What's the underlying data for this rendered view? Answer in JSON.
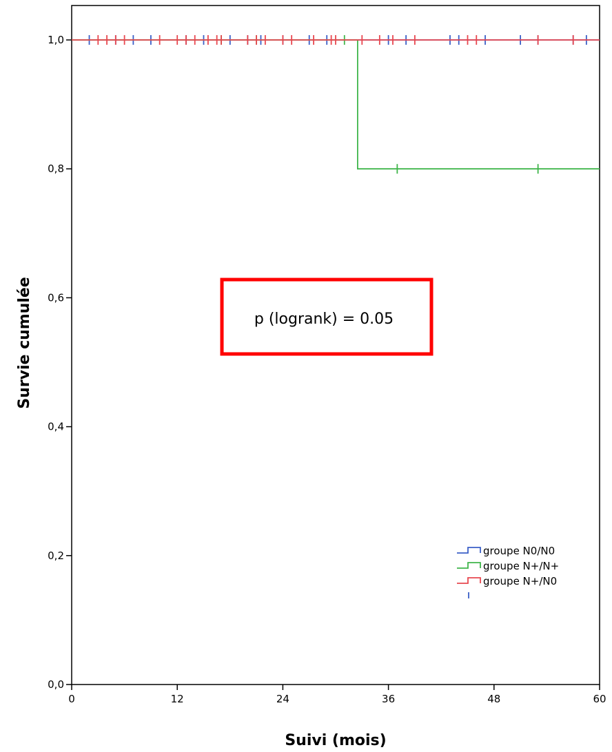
{
  "chart_data": {
    "type": "line",
    "step": true,
    "xlabel": "Suivi (mois)",
    "ylabel": "Survie cumulée",
    "xlim": [
      0,
      60
    ],
    "ylim": [
      0,
      1
    ],
    "x_ticks": [
      0,
      12,
      24,
      36,
      48,
      60
    ],
    "x_tick_labels": [
      "0",
      "12",
      "24",
      "36",
      "48",
      "60"
    ],
    "y_ticks": [
      0,
      0.2,
      0.4,
      0.6,
      0.8,
      1.0
    ],
    "y_tick_labels": [
      "0,0",
      "0,2",
      "0,4",
      "0,6",
      "0,8",
      "1,0"
    ],
    "grid": false,
    "legend_position": "bottom-right",
    "annotation": "p (logrank) = 0.05",
    "annotation_color": "#ff0000",
    "series": [
      {
        "name": "groupe N0/N0",
        "color": "#3b5fc7",
        "steps": [
          [
            0,
            1.0
          ],
          [
            60,
            1.0
          ]
        ],
        "censored": [
          2,
          5,
          7,
          9,
          13,
          15,
          18,
          20,
          21.5,
          24,
          27,
          29,
          36,
          38,
          43,
          44,
          47,
          51,
          53,
          57,
          58.5
        ]
      },
      {
        "name": "groupe N+/N+",
        "color": "#3fb54a",
        "steps": [
          [
            0,
            1.0
          ],
          [
            32.5,
            1.0
          ],
          [
            32.5,
            0.8
          ],
          [
            60,
            0.8
          ]
        ],
        "censored": [
          17,
          21,
          31,
          37,
          53
        ]
      },
      {
        "name": "groupe N+/N0",
        "color": "#e8474f",
        "steps": [
          [
            0,
            1.0
          ],
          [
            60,
            1.0
          ]
        ],
        "censored": [
          3,
          4,
          5,
          6,
          10,
          12,
          13,
          14,
          15.5,
          16.5,
          17,
          20,
          21,
          22,
          24,
          25,
          27.5,
          29.5,
          30,
          33,
          35,
          36.5,
          39,
          45,
          46,
          53,
          57
        ]
      }
    ]
  }
}
